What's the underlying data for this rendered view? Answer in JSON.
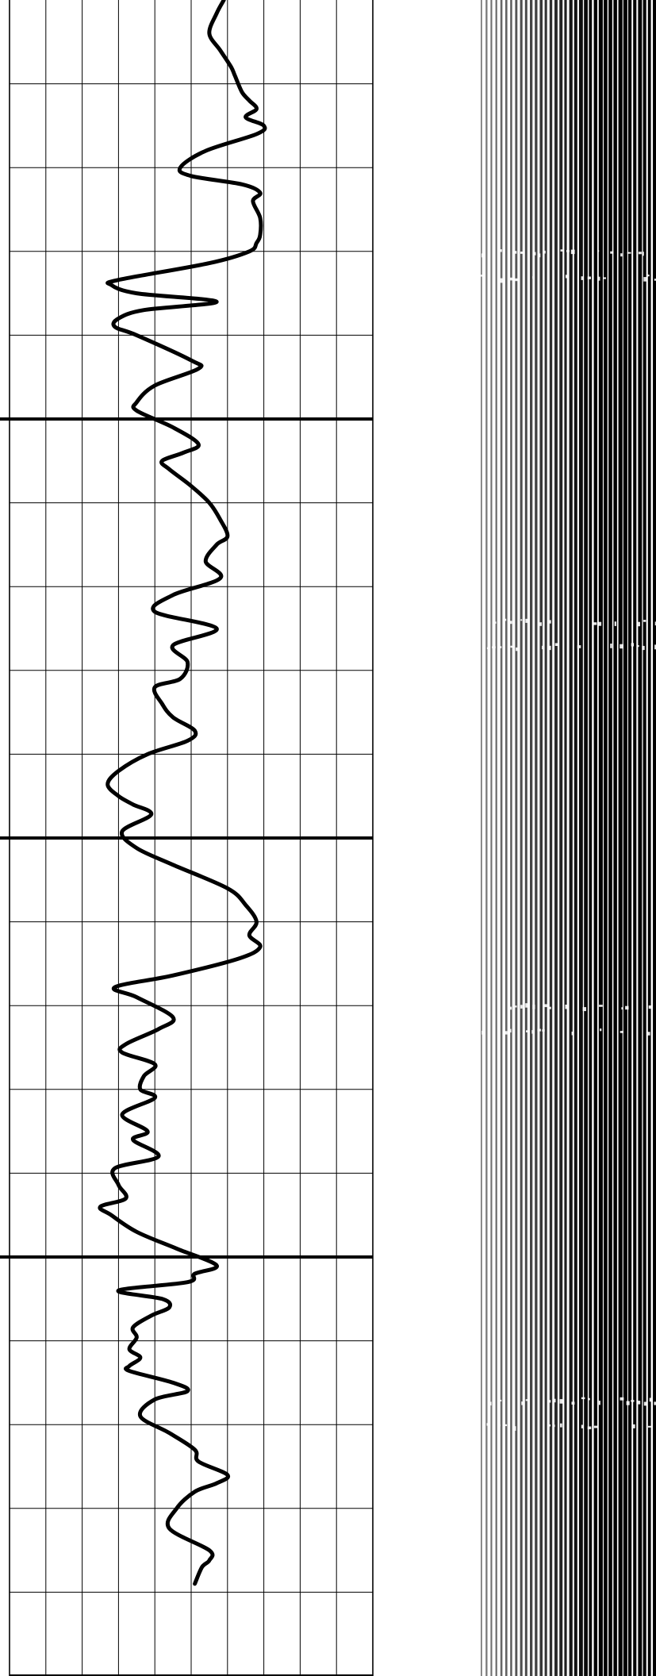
{
  "chart_data": {
    "type": "line",
    "title": "",
    "xlabel": "",
    "ylabel": "",
    "grid": true,
    "orientation": "vertical-depth",
    "x_axis": {
      "min": 0,
      "max": 10,
      "major_divisions": 10
    },
    "y_axis": {
      "min": 0,
      "max": 1000,
      "direction": "down",
      "minor_interval": 50,
      "major_interval": 250
    },
    "series": [
      {
        "role": "log-curve",
        "color": "#000000",
        "points": [
          [
            5.9,
            0
          ],
          [
            5.7,
            8
          ],
          [
            5.5,
            20
          ],
          [
            5.8,
            30
          ],
          [
            6.1,
            40
          ],
          [
            6.2,
            45
          ],
          [
            6.4,
            55
          ],
          [
            6.6,
            60
          ],
          [
            6.8,
            65
          ],
          [
            6.5,
            70
          ],
          [
            7.0,
            75
          ],
          [
            6.8,
            80
          ],
          [
            5.4,
            90
          ],
          [
            4.7,
            100
          ],
          [
            5.0,
            105
          ],
          [
            6.4,
            110
          ],
          [
            6.9,
            115
          ],
          [
            6.7,
            120
          ],
          [
            6.9,
            130
          ],
          [
            6.9,
            140
          ],
          [
            6.8,
            145
          ],
          [
            6.6,
            150
          ],
          [
            5.5,
            157
          ],
          [
            3.0,
            167
          ],
          [
            2.8,
            170
          ],
          [
            3.5,
            175
          ],
          [
            5.7,
            180
          ],
          [
            3.7,
            185
          ],
          [
            3.0,
            190
          ],
          [
            2.9,
            195
          ],
          [
            3.5,
            200
          ],
          [
            5.0,
            215
          ],
          [
            5.2,
            220
          ],
          [
            4.0,
            230
          ],
          [
            3.5,
            240
          ],
          [
            3.5,
            245
          ],
          [
            4.5,
            255
          ],
          [
            5.2,
            265
          ],
          [
            4.8,
            270
          ],
          [
            4.2,
            275
          ],
          [
            4.4,
            280
          ],
          [
            5.0,
            290
          ],
          [
            5.5,
            300
          ],
          [
            5.8,
            310
          ],
          [
            6.0,
            320
          ],
          [
            5.7,
            325
          ],
          [
            5.4,
            335
          ],
          [
            5.8,
            345
          ],
          [
            4.5,
            355
          ],
          [
            4.0,
            365
          ],
          [
            5.7,
            375
          ],
          [
            4.5,
            385
          ],
          [
            4.9,
            395
          ],
          [
            4.7,
            405
          ],
          [
            4.0,
            410
          ],
          [
            4.2,
            420
          ],
          [
            4.5,
            428
          ],
          [
            5.1,
            436
          ],
          [
            4.9,
            442
          ],
          [
            3.8,
            450
          ],
          [
            3.0,
            460
          ],
          [
            2.7,
            468
          ],
          [
            3.0,
            475
          ],
          [
            3.4,
            480
          ],
          [
            3.9,
            486
          ],
          [
            3.1,
            496
          ],
          [
            3.5,
            506
          ],
          [
            4.5,
            516
          ],
          [
            6.0,
            530
          ],
          [
            6.5,
            540
          ],
          [
            6.8,
            550
          ],
          [
            6.6,
            558
          ],
          [
            6.9,
            565
          ],
          [
            6.3,
            572
          ],
          [
            4.5,
            582
          ],
          [
            2.9,
            589
          ],
          [
            3.5,
            595
          ],
          [
            4.5,
            607
          ],
          [
            4.1,
            614
          ],
          [
            3.2,
            623
          ],
          [
            3.1,
            628
          ],
          [
            4.0,
            635
          ],
          [
            3.7,
            642
          ],
          [
            3.6,
            650
          ],
          [
            4.0,
            655
          ],
          [
            3.1,
            665
          ],
          [
            3.8,
            675
          ],
          [
            3.4,
            680
          ],
          [
            4.1,
            690
          ],
          [
            2.9,
            697
          ],
          [
            3.0,
            707
          ],
          [
            3.2,
            715
          ],
          [
            2.5,
            720
          ],
          [
            2.8,
            725
          ],
          [
            3.5,
            735
          ],
          [
            4.6,
            745
          ],
          [
            5.7,
            755
          ],
          [
            5.1,
            760
          ],
          [
            4.9,
            765
          ],
          [
            3.0,
            770
          ],
          [
            4.2,
            775
          ],
          [
            4.4,
            780
          ],
          [
            3.9,
            785
          ],
          [
            3.4,
            792
          ],
          [
            3.5,
            798
          ],
          [
            3.3,
            805
          ],
          [
            3.6,
            810
          ],
          [
            3.3,
            815
          ],
          [
            3.3,
            818
          ],
          [
            4.5,
            825
          ],
          [
            4.9,
            830
          ],
          [
            4.0,
            835
          ],
          [
            3.6,
            845
          ],
          [
            4.4,
            855
          ],
          [
            5.1,
            865
          ],
          [
            5.2,
            872
          ],
          [
            6.0,
            880
          ],
          [
            5.7,
            885
          ],
          [
            5.1,
            890
          ],
          [
            4.6,
            900
          ],
          [
            4.4,
            912
          ],
          [
            5.5,
            925
          ],
          [
            5.5,
            931
          ],
          [
            5.3,
            935
          ],
          [
            5.1,
            945
          ]
        ]
      }
    ],
    "panels": [
      {
        "role": "log-curve-track",
        "grid": true
      },
      {
        "role": "empty-track",
        "grid": false
      },
      {
        "role": "wiggle-trace-image",
        "style": "variable-density"
      }
    ],
    "colors": {
      "curve": "#000000",
      "grid": "#000000",
      "background": "#ffffff"
    }
  }
}
